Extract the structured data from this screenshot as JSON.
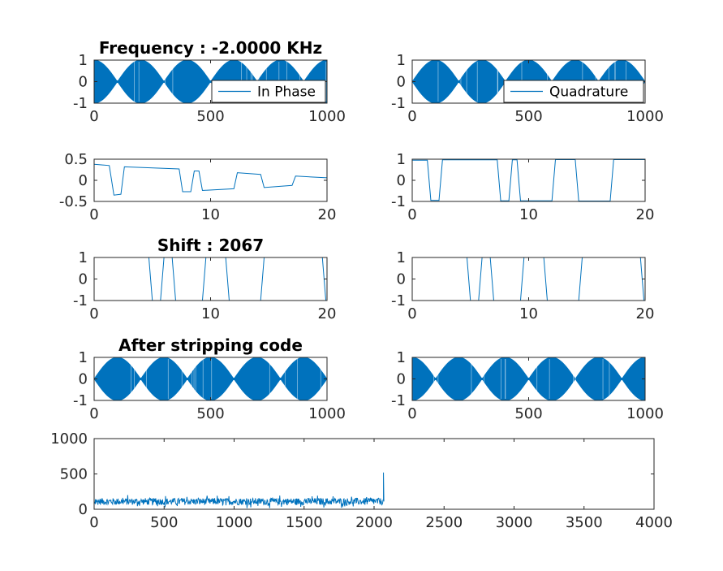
{
  "colors": {
    "series": "#0072BD",
    "axis": "#262626",
    "background": "#ffffff"
  },
  "chart_data": [
    {
      "type": "line",
      "title": "Frequency : -2.0000 KHz",
      "signal": "envelope",
      "envelope_period": 200,
      "envelope_phase": 0.0,
      "xlim": [
        0,
        1000
      ],
      "ylim": [
        -1,
        1
      ],
      "xticks": [
        "0",
        "500",
        "1000"
      ],
      "yticks": [
        "1",
        "0",
        "-1"
      ],
      "legend": "In Phase",
      "legend_position": "bottom-right"
    },
    {
      "type": "line",
      "title": "",
      "signal": "envelope",
      "envelope_period": 200,
      "envelope_phase": 0.5,
      "xlim": [
        0,
        1000
      ],
      "ylim": [
        -1,
        1
      ],
      "xticks": [
        "0",
        "500",
        "1000"
      ],
      "yticks": [
        "1",
        "0",
        "-1"
      ],
      "legend": "Quadrature",
      "legend_position": "bottom-right"
    },
    {
      "type": "line",
      "title": "",
      "x": [
        0,
        1.3,
        1.7,
        2.3,
        2.6,
        7.3,
        7.6,
        8.3,
        8.6,
        9.0,
        9.3,
        12.0,
        12.3,
        14.3,
        14.6,
        17.0,
        17.3,
        20.0
      ],
      "y": [
        0.38,
        0.35,
        -0.35,
        -0.33,
        0.32,
        0.27,
        -0.27,
        -0.27,
        0.22,
        0.22,
        -0.24,
        -0.2,
        0.18,
        0.14,
        -0.17,
        -0.12,
        0.1,
        0.06
      ],
      "xlim": [
        0,
        20
      ],
      "ylim": [
        -0.5,
        0.5
      ],
      "xticks": [
        "0",
        "10",
        "20"
      ],
      "yticks": [
        "0.5",
        "0",
        "-0.5"
      ]
    },
    {
      "type": "line",
      "title": "",
      "x": [
        0,
        1.3,
        1.6,
        2.3,
        2.6,
        7.3,
        7.6,
        8.3,
        8.6,
        9.0,
        9.3,
        12.0,
        12.3,
        14.0,
        14.3,
        17.0,
        17.3,
        20.0
      ],
      "y": [
        0.95,
        0.95,
        -0.95,
        -0.95,
        0.97,
        0.97,
        -0.97,
        -0.97,
        0.97,
        0.97,
        -0.97,
        -0.97,
        0.98,
        0.98,
        -0.98,
        -0.98,
        0.98,
        0.98
      ],
      "xlim": [
        0,
        20
      ],
      "ylim": [
        -1,
        1
      ],
      "xticks": [
        "0",
        "10",
        "20"
      ],
      "yticks": [
        "1",
        "0",
        "-1"
      ]
    },
    {
      "type": "line",
      "title": "Shift : 2067",
      "x": [
        0,
        4.7,
        5.0,
        5.7,
        6.0,
        6.7,
        7.0,
        9.3,
        9.6,
        11.3,
        11.6,
        14.3,
        14.6,
        19.6,
        19.9,
        20.0
      ],
      "y": [
        1,
        1,
        -1,
        -1,
        1,
        1,
        -1,
        -1,
        1,
        1,
        -1,
        -1,
        1,
        1,
        -1,
        -1
      ],
      "xlim": [
        0,
        20
      ],
      "ylim": [
        -1,
        1
      ],
      "xticks": [
        "0",
        "10",
        "20"
      ],
      "yticks": [
        "1",
        "0",
        "-1"
      ]
    },
    {
      "type": "line",
      "title": "",
      "x": [
        0,
        4.7,
        5.0,
        5.7,
        6.0,
        6.7,
        7.0,
        9.3,
        9.6,
        11.3,
        11.6,
        14.3,
        14.6,
        19.6,
        19.9,
        20.0
      ],
      "y": [
        1,
        1,
        -1,
        -1,
        1,
        1,
        -1,
        -1,
        1,
        1,
        -1,
        -1,
        1,
        1,
        -1,
        -1
      ],
      "xlim": [
        0,
        20
      ],
      "ylim": [
        -1,
        1
      ],
      "xticks": [
        "0",
        "10",
        "20"
      ],
      "yticks": [
        "1",
        "0",
        "-1"
      ]
    },
    {
      "type": "line",
      "title": "After stripping code",
      "signal": "envelope",
      "envelope_period": 200,
      "envelope_phase": 0.5,
      "xlim": [
        0,
        1000
      ],
      "ylim": [
        -1,
        1
      ],
      "xticks": [
        "0",
        "500",
        "1000"
      ],
      "yticks": [
        "1",
        "0",
        "-1"
      ]
    },
    {
      "type": "line",
      "title": "",
      "signal": "envelope",
      "envelope_period": 200,
      "envelope_phase": 0.0,
      "xlim": [
        0,
        1000
      ],
      "ylim": [
        -1,
        1
      ],
      "xticks": [
        "0",
        "500",
        "1000"
      ],
      "yticks": [
        "1",
        "0",
        "-1"
      ]
    },
    {
      "type": "line",
      "title": "",
      "signal": "noise",
      "noise_mean": 110,
      "noise_spread": 80,
      "x_end": 2067,
      "peak": {
        "x": 2067,
        "y": 520
      },
      "xlim": [
        0,
        4000
      ],
      "ylim": [
        0,
        1000
      ],
      "xticks": [
        "0",
        "500",
        "1000",
        "1500",
        "2000",
        "2500",
        "3000",
        "3500",
        "4000"
      ],
      "yticks": [
        "1000",
        "500",
        "0"
      ]
    }
  ]
}
